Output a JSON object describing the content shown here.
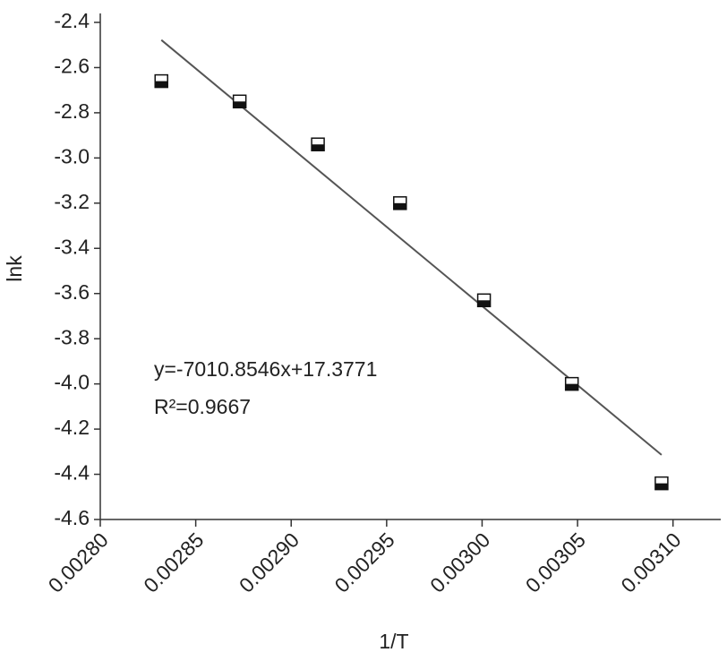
{
  "chart_data": {
    "type": "scatter",
    "x_label": "1/T",
    "y_label": "lnk",
    "x": [
      0.002832,
      0.002873,
      0.002914,
      0.002957,
      0.003001,
      0.003047,
      0.003094
    ],
    "values": [
      -2.66,
      -2.75,
      -2.94,
      -3.2,
      -3.63,
      -4.0,
      -4.44
    ],
    "fit": {
      "x": [
        0.002832,
        0.003094
      ],
      "values": [
        -2.478,
        -4.314
      ],
      "color": "#555555"
    },
    "annotations": [
      "y=-7010.8546x+17.3771",
      "R²=0.9667"
    ],
    "xlim": [
      0.0028,
      0.003125
    ],
    "xticks": [
      {
        "value": 0.0028,
        "label": "0.00280"
      },
      {
        "value": 0.00285,
        "label": "0.00285"
      },
      {
        "value": 0.0029,
        "label": "0.00290"
      },
      {
        "value": 0.00295,
        "label": "0.00295"
      },
      {
        "value": 0.003,
        "label": "0.00300"
      },
      {
        "value": 0.00305,
        "label": "0.00305"
      },
      {
        "value": 0.0031,
        "label": "0.00310"
      }
    ],
    "ylim": [
      -4.6,
      -2.4
    ],
    "yticks": [
      -2.4,
      -2.6,
      -2.8,
      {
        "value": -3.0,
        "label": "-3.0"
      },
      -3.2,
      -3.4,
      -3.6,
      -3.8,
      {
        "value": -4.0,
        "label": "-4.0"
      },
      -4.2,
      -4.4,
      -4.6
    ]
  }
}
